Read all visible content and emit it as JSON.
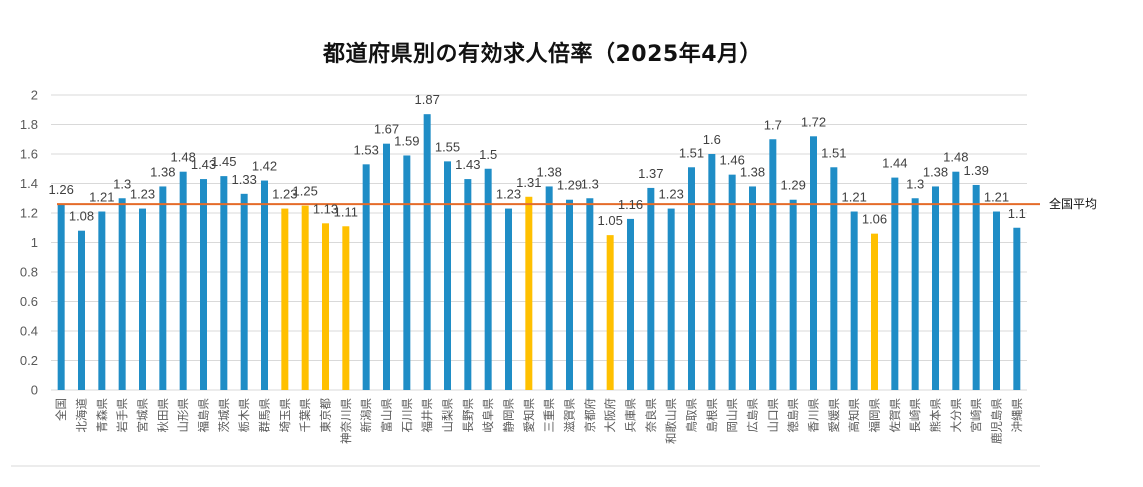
{
  "chart_data": {
    "type": "bar",
    "title": "都道府県別の有効求人倍率（2025年4月）",
    "xlabel": "",
    "ylabel": "",
    "ylim": [
      0,
      2
    ],
    "yticks": [
      "0",
      "0.2",
      "0.4",
      "0.6",
      "0.8",
      "1",
      "1.2",
      "1.4",
      "1.6",
      "1.8",
      "2"
    ],
    "grid": true,
    "categories": [
      "全国",
      "北海道",
      "青森県",
      "岩手県",
      "宮城県",
      "秋田県",
      "山形県",
      "福島県",
      "茨城県",
      "栃木県",
      "群馬県",
      "埼玉県",
      "千葉県",
      "東京都",
      "神奈川県",
      "新潟県",
      "富山県",
      "石川県",
      "福井県",
      "山梨県",
      "長野県",
      "岐阜県",
      "静岡県",
      "愛知県",
      "三重県",
      "滋賀県",
      "京都府",
      "大阪府",
      "兵庫県",
      "奈良県",
      "和歌山県",
      "鳥取県",
      "島根県",
      "岡山県",
      "広島県",
      "山口県",
      "徳島県",
      "香川県",
      "愛媛県",
      "高知県",
      "福岡県",
      "佐賀県",
      "長崎県",
      "熊本県",
      "大分県",
      "宮崎県",
      "鹿児島県",
      "沖縄県"
    ],
    "values": [
      1.26,
      1.08,
      1.21,
      1.3,
      1.23,
      1.38,
      1.48,
      1.43,
      1.45,
      1.33,
      1.42,
      1.23,
      1.25,
      1.13,
      1.11,
      1.53,
      1.67,
      1.59,
      1.87,
      1.55,
      1.43,
      1.5,
      1.23,
      1.31,
      1.38,
      1.29,
      1.3,
      1.05,
      1.16,
      1.37,
      1.23,
      1.51,
      1.6,
      1.46,
      1.38,
      1.7,
      1.29,
      1.72,
      1.51,
      1.21,
      1.06,
      1.44,
      1.3,
      1.38,
      1.48,
      1.39,
      1.21,
      1.1
    ],
    "data_labels": [
      "1.26",
      "1.08",
      "1.21",
      "1.3",
      "1.23",
      "1.38",
      "1.48",
      "1.43",
      "1.45",
      "1.33",
      "1.42",
      "1.23",
      "1.25",
      "1.13",
      "1.11",
      "1.53",
      "1.67",
      "1.59",
      "1.87",
      "1.55",
      "1.43",
      "1.5",
      "1.23",
      "1.31",
      "1.38",
      "1.29",
      "1.3",
      "1.05",
      "1.16",
      "1.37",
      "1.23",
      "1.51",
      "1.6",
      "1.46",
      "1.38",
      "1.7",
      "1.29",
      "1.72",
      "1.51",
      "1.21",
      "1.06",
      "1.44",
      "1.3",
      "1.38",
      "1.48",
      "1.39",
      "1.21",
      "1.1"
    ],
    "highlighted": [
      "埼玉県",
      "千葉県",
      "東京都",
      "神奈川県",
      "愛知県",
      "大阪府",
      "福岡県"
    ],
    "reference_line": {
      "label": "全国平均",
      "value": 1.26
    },
    "colors": {
      "bar": "#1F8DC6",
      "highlight": "#FFC000",
      "reference_line": "#E46C2A",
      "grid": "#D9D9D9"
    },
    "legend": "none"
  }
}
